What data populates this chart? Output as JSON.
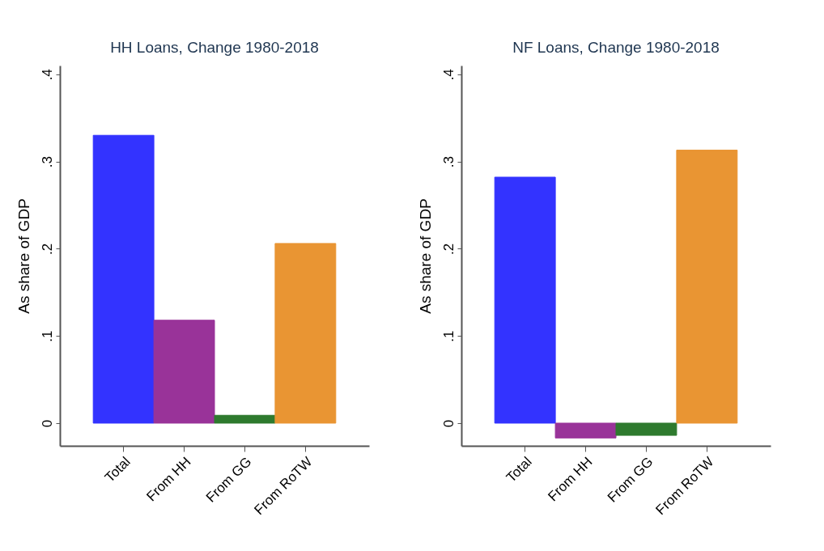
{
  "chart_data": [
    {
      "type": "bar",
      "title": "HH Loans, Change 1980-2018",
      "ylabel": "As share of GDP",
      "categories": [
        "Total",
        "From HH",
        "From GG",
        "From RoTW"
      ],
      "values": [
        0.33,
        0.118,
        0.009,
        0.206
      ],
      "colors": [
        "#3333ff",
        "#993399",
        "#2e7a2e",
        "#e99533"
      ],
      "ylim": [
        -0.026,
        0.41
      ],
      "yticks": [
        0,
        {
          "value": 0.1,
          "label": ".1"
        },
        {
          "value": 0.2,
          "label": ".2"
        },
        {
          "value": 0.3,
          "label": ".3"
        },
        {
          "value": 0.4,
          "label": ".4"
        }
      ]
    },
    {
      "type": "bar",
      "title": "NF Loans, Change 1980-2018",
      "ylabel": "As share of GDP",
      "categories": [
        "Total",
        "From HH",
        "From GG",
        "From RoTW"
      ],
      "values": [
        0.282,
        -0.017,
        -0.014,
        0.313
      ],
      "colors": [
        "#3333ff",
        "#993399",
        "#2e7a2e",
        "#e99533"
      ],
      "ylim": [
        -0.026,
        0.41
      ],
      "yticks": [
        0,
        {
          "value": 0.1,
          "label": ".1"
        },
        {
          "value": 0.2,
          "label": ".2"
        },
        {
          "value": 0.3,
          "label": ".3"
        },
        {
          "value": 0.4,
          "label": ".4"
        }
      ]
    }
  ]
}
